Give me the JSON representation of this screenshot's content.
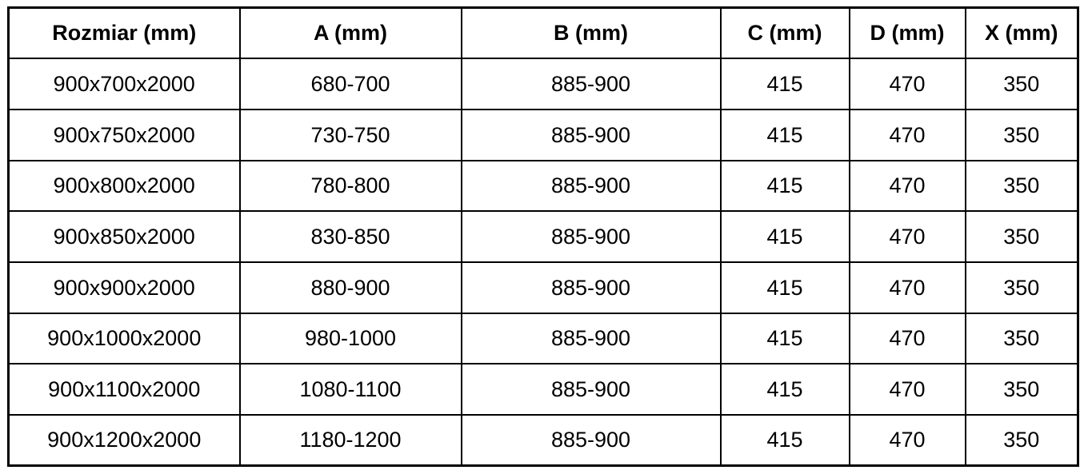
{
  "table": {
    "columns": [
      {
        "label": "Rozmiar (mm)"
      },
      {
        "label": "A (mm)"
      },
      {
        "label": "B (mm)"
      },
      {
        "label": "C (mm)"
      },
      {
        "label": "D (mm)"
      },
      {
        "label": "X (mm)"
      }
    ],
    "rows": [
      {
        "cells": [
          "900x700x2000",
          "680-700",
          "885-900",
          "415",
          "470",
          "350"
        ]
      },
      {
        "cells": [
          "900x750x2000",
          "730-750",
          "885-900",
          "415",
          "470",
          "350"
        ]
      },
      {
        "cells": [
          "900x800x2000",
          "780-800",
          "885-900",
          "415",
          "470",
          "350"
        ]
      },
      {
        "cells": [
          "900x850x2000",
          "830-850",
          "885-900",
          "415",
          "470",
          "350"
        ]
      },
      {
        "cells": [
          "900x900x2000",
          "880-900",
          "885-900",
          "415",
          "470",
          "350"
        ]
      },
      {
        "cells": [
          "900x1000x2000",
          "980-1000",
          "885-900",
          "415",
          "470",
          "350"
        ]
      },
      {
        "cells": [
          "900x1100x2000",
          "1080-1100",
          "885-900",
          "415",
          "470",
          "350"
        ]
      },
      {
        "cells": [
          "900x1200x2000",
          "1180-1200",
          "885-900",
          "415",
          "470",
          "350"
        ]
      }
    ]
  },
  "colors": {
    "border": "#000000",
    "text": "#000000",
    "background": "#ffffff"
  }
}
